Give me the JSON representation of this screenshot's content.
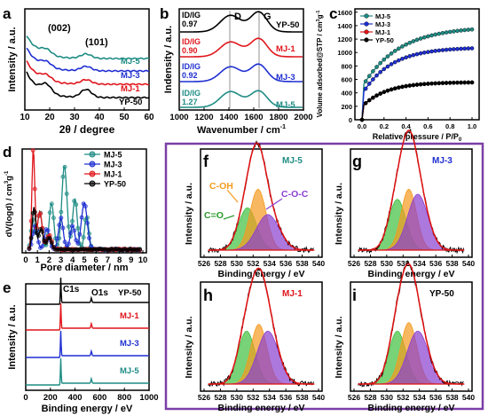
{
  "colors": {
    "MJ5": "#1e8c84",
    "MJ3": "#1f2fd1",
    "MJ1": "#e0151b",
    "YP50": "#000000",
    "frame": "#7b3fa6",
    "fit": "#e01010",
    "green": "#3fbf3f",
    "orange": "#f59a1e",
    "purple": "#8a3fd0"
  },
  "panels": {
    "a": {
      "label": "a",
      "ylabel": "Intensity / a.u.",
      "xlabel": "2θ / degree",
      "xticks": [
        "10",
        "20",
        "30",
        "40",
        "50",
        "60"
      ],
      "peak1": "(002)",
      "peak2": "(101)",
      "series": [
        "MJ-5",
        "MJ-3",
        "MJ-1",
        "YP-50"
      ]
    },
    "b": {
      "label": "b",
      "ylabel": "Indensity / a.u.",
      "xlabel": "Wavenumber / cm",
      "xlabel_sup": "-1",
      "xticks": [
        "1000",
        "1200",
        "1400",
        "1600",
        "1800",
        "2000"
      ],
      "peak_d": "D",
      "peak_g": "G",
      "ratio_label": "ID/IG",
      "series": [
        "YP-50",
        "MJ-1",
        "MJ-3",
        "MJ-5"
      ],
      "ratios": [
        "0.97",
        "0.90",
        "0.92",
        "1.27"
      ]
    },
    "c": {
      "label": "c",
      "ylabel": "Volume adsorbed@STP / cm",
      "ylabel_sup": "3",
      "ylabel_tail": "g",
      "ylabel_tail_sup": "-1",
      "xlabel": "Relative pressure / P/P",
      "xlabel_sub": "0",
      "yticks": [
        "0",
        "200",
        "400",
        "600",
        "800",
        "1000",
        "1200",
        "1400",
        "1600"
      ],
      "xticks": [
        "0.0",
        "0.2",
        "0.4",
        "0.6",
        "0.8",
        "1.0"
      ],
      "legend": [
        "MJ-5",
        "MJ-3",
        "MJ-1",
        "YP-50"
      ]
    },
    "d": {
      "label": "d",
      "ylabel": "dV(logd) / cm",
      "ylabel_sup": "3",
      "ylabel_tail": "g",
      "ylabel_tail_sup": "-1",
      "xlabel": "Pore diameter / nm",
      "xticks": [
        "0",
        "1",
        "2",
        "3",
        "4",
        "5",
        "6",
        "7",
        "8",
        "9",
        "10"
      ],
      "legend": [
        "MJ-5",
        "MJ-3",
        "MJ-1",
        "YP-50"
      ]
    },
    "e": {
      "label": "e",
      "ylabel": "Intensity / a.u.",
      "xlabel": "Binding energy / eV",
      "xticks": [
        "0",
        "200",
        "400",
        "600",
        "800",
        "1000"
      ],
      "c1s": "C1s",
      "o1s": "O1s",
      "series": [
        "YP-50",
        "MJ-1",
        "MJ-3",
        "MJ-5"
      ]
    },
    "xps": {
      "ylabel": "Intensity / a.u.",
      "xlabel": "Binding energy / eV",
      "xticks": [
        "526",
        "528",
        "530",
        "532",
        "534",
        "536",
        "538",
        "540"
      ],
      "f": {
        "label": "f",
        "sample": "MJ-5",
        "coh": "C-OH",
        "coc": "C-O-C",
        "co": "C=O"
      },
      "g": {
        "label": "g",
        "sample": "MJ-3"
      },
      "h": {
        "label": "h",
        "sample": "MJ-1"
      },
      "i": {
        "label": "i",
        "sample": "YP-50"
      }
    }
  }
}
